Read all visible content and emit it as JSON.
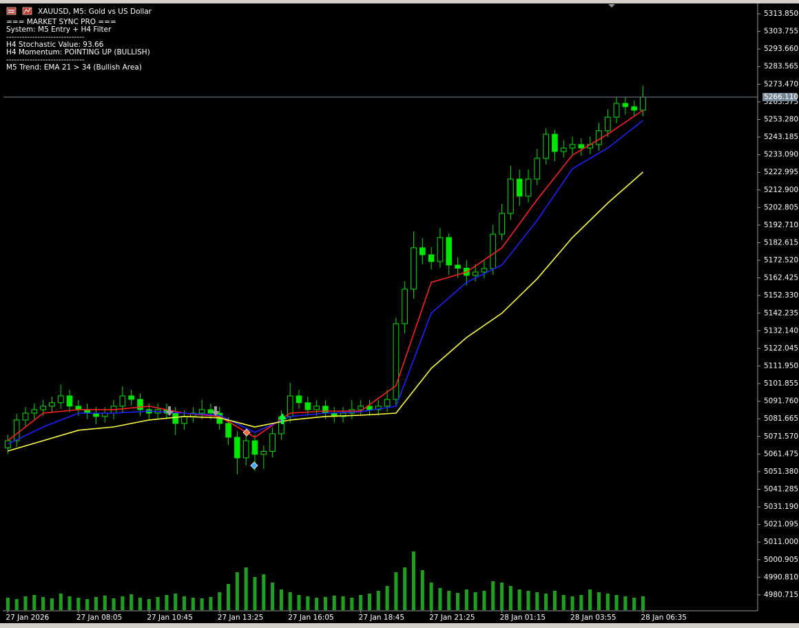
{
  "chart_data": {
    "type": "candlestick",
    "title": "XAUUSD, M5:  Gold vs US Dollar",
    "annotations": [
      "=== MARKET SYNC PRO ===",
      "System: M5 Entry + H4 Filter",
      "------------------------------",
      "H4 Stochastic Value: 93.66",
      "H4 Momentum: POINTING UP (BULLISH)",
      "------------------------------",
      "M5 Trend: EMA 21 > 34 (Bullish Area)"
    ],
    "color": "#00e600",
    "x": [
      0,
      1,
      2,
      3,
      4,
      5,
      6,
      7,
      8,
      9,
      10,
      11,
      12,
      13,
      14,
      15,
      16,
      17,
      18,
      19,
      20,
      21,
      22,
      23,
      24,
      25,
      26,
      27,
      28,
      29,
      30,
      31,
      32,
      33,
      34,
      35,
      36,
      37,
      38,
      39,
      40,
      41,
      42,
      43,
      44,
      45,
      46,
      47,
      48,
      49,
      50,
      51,
      52,
      53,
      54,
      55,
      56,
      57,
      58,
      59,
      60,
      61,
      62,
      63,
      64,
      65,
      66,
      67,
      68,
      69,
      70,
      71,
      72
    ],
    "open": [
      5065.0,
      5069.1,
      5081.0,
      5084.9,
      5086.9,
      5088.9,
      5090.9,
      5094.8,
      5088.9,
      5086.9,
      5084.9,
      5083.0,
      5084.9,
      5088.9,
      5094.8,
      5092.8,
      5086.9,
      5084.9,
      5086.9,
      5084.9,
      5079.0,
      5083.0,
      5084.9,
      5086.9,
      5084.9,
      5079.0,
      5071.1,
      5059.3,
      5069.1,
      5061.3,
      5063.0,
      5073.1,
      5083.0,
      5094.8,
      5090.9,
      5086.9,
      5088.9,
      5084.9,
      5083.0,
      5084.9,
      5086.9,
      5088.9,
      5086.9,
      5088.9,
      5092.8,
      5136.2,
      5156.0,
      5179.7,
      5175.7,
      5171.8,
      5185.6,
      5169.8,
      5168.0,
      5163.9,
      5165.8,
      5167.8,
      5187.5,
      5199.4,
      5219.1,
      5209.3,
      5219.1,
      5231.0,
      5244.8,
      5234.9,
      5236.9,
      5238.9,
      5236.9,
      5238.9,
      5246.8,
      5254.6,
      5262.5,
      5260.6,
      5258.6
    ],
    "high": [
      5072.6,
      5084.5,
      5088.4,
      5090.4,
      5092.4,
      5094.4,
      5101.3,
      5098.3,
      5092.4,
      5090.4,
      5088.4,
      5088.4,
      5092.4,
      5100.3,
      5098.3,
      5096.3,
      5090.4,
      5090.4,
      5090.4,
      5088.4,
      5086.5,
      5088.4,
      5092.4,
      5090.4,
      5088.4,
      5082.5,
      5074.6,
      5072.6,
      5072.6,
      5066.5,
      5076.6,
      5086.5,
      5102.3,
      5098.3,
      5094.4,
      5092.4,
      5092.4,
      5088.4,
      5088.4,
      5092.4,
      5092.4,
      5092.4,
      5092.4,
      5098.3,
      5139.7,
      5160.5,
      5189.2,
      5185.2,
      5180.2,
      5191.1,
      5188.1,
      5174.3,
      5172.5,
      5170.3,
      5172.3,
      5193.0,
      5204.9,
      5226.6,
      5224.6,
      5224.6,
      5236.5,
      5248.3,
      5247.3,
      5241.4,
      5243.4,
      5242.4,
      5243.4,
      5251.3,
      5259.1,
      5266.0,
      5266.0,
      5264.1,
      5272.6
    ],
    "low": [
      5061.5,
      5065.6,
      5077.5,
      5081.4,
      5083.4,
      5085.4,
      5087.4,
      5085.4,
      5083.4,
      5081.4,
      5078.5,
      5079.5,
      5081.4,
      5085.4,
      5089.3,
      5083.4,
      5081.4,
      5081.4,
      5081.4,
      5072.5,
      5075.5,
      5079.5,
      5081.4,
      5081.4,
      5075.5,
      5066.6,
      5049.8,
      5054.8,
      5051.8,
      5052.8,
      5059.5,
      5069.6,
      5079.5,
      5087.4,
      5083.4,
      5083.4,
      5081.4,
      5079.5,
      5079.5,
      5081.4,
      5083.4,
      5083.4,
      5083.4,
      5085.4,
      5089.3,
      5130.7,
      5150.5,
      5170.2,
      5167.3,
      5168.3,
      5164.3,
      5162.5,
      5158.4,
      5160.4,
      5162.3,
      5164.3,
      5184.0,
      5195.9,
      5203.8,
      5205.8,
      5215.6,
      5227.5,
      5229.4,
      5231.4,
      5233.4,
      5232.4,
      5233.4,
      5235.4,
      5243.3,
      5251.1,
      5256.1,
      5255.1,
      5255.1
    ],
    "close": [
      5069.1,
      5081.0,
      5084.9,
      5086.9,
      5088.9,
      5090.9,
      5094.8,
      5088.9,
      5086.9,
      5084.9,
      5083.0,
      5084.9,
      5088.9,
      5094.8,
      5092.8,
      5086.9,
      5084.9,
      5086.9,
      5084.9,
      5079.0,
      5083.0,
      5084.9,
      5086.9,
      5084.9,
      5079.0,
      5071.1,
      5059.3,
      5069.1,
      5061.3,
      5063.0,
      5073.1,
      5083.0,
      5094.8,
      5090.9,
      5086.9,
      5088.9,
      5084.9,
      5083.0,
      5084.9,
      5086.9,
      5088.9,
      5086.9,
      5088.9,
      5092.8,
      5136.2,
      5156.0,
      5179.7,
      5175.7,
      5171.8,
      5185.6,
      5169.8,
      5168.0,
      5163.9,
      5165.8,
      5167.8,
      5187.5,
      5199.4,
      5219.1,
      5209.3,
      5219.1,
      5231.0,
      5244.8,
      5234.9,
      5236.9,
      5238.9,
      5236.9,
      5238.9,
      5246.8,
      5254.6,
      5262.5,
      5260.6,
      5258.6,
      5266.1
    ],
    "volume": [
      18,
      16,
      20,
      22,
      19,
      17,
      24,
      20,
      18,
      16,
      19,
      21,
      17,
      20,
      23,
      18,
      16,
      19,
      22,
      24,
      20,
      18,
      17,
      19,
      26,
      38,
      55,
      62,
      48,
      52,
      40,
      30,
      26,
      22,
      20,
      18,
      19,
      21,
      20,
      18,
      22,
      24,
      28,
      35,
      55,
      62,
      85,
      58,
      40,
      32,
      28,
      25,
      30,
      26,
      28,
      42,
      40,
      35,
      30,
      28,
      26,
      24,
      28,
      22,
      20,
      22,
      30,
      26,
      24,
      22,
      20,
      18,
      20
    ],
    "series": [
      {
        "color": "#ff2020",
        "x": [
          0,
          4,
          8,
          12,
          16,
          20,
          24,
          28,
          32,
          36,
          40,
          44,
          48,
          52,
          56,
          60,
          64,
          68,
          72
        ],
        "values": [
          5069.1,
          5084.9,
          5086.9,
          5086.9,
          5088.9,
          5084.9,
          5083.0,
          5071.1,
          5084.9,
          5086.1,
          5086.1,
          5100.7,
          5159.9,
          5165.8,
          5179.7,
          5207.3,
          5232.9,
          5244.8,
          5258.6
        ]
      },
      {
        "color": "#2020ff",
        "x": [
          0,
          4,
          8,
          12,
          16,
          20,
          24,
          28,
          32,
          36,
          40,
          44,
          48,
          52,
          56,
          60,
          64,
          68,
          72
        ],
        "values": [
          5067.2,
          5077.0,
          5084.9,
          5084.9,
          5086.1,
          5084.9,
          5083.7,
          5073.9,
          5083.0,
          5084.9,
          5085.7,
          5088.9,
          5142.2,
          5159.9,
          5169.8,
          5195.4,
          5225.0,
          5236.9,
          5252.7
        ]
      },
      {
        "color": "#ffff40",
        "x": [
          0,
          4,
          8,
          12,
          16,
          20,
          24,
          28,
          32,
          36,
          40,
          44,
          48,
          52,
          56,
          60,
          64,
          68,
          72
        ],
        "values": [
          5063.2,
          5069.1,
          5075.1,
          5077.0,
          5081.0,
          5083.0,
          5082.2,
          5077.0,
          5081.0,
          5083.0,
          5083.7,
          5084.9,
          5110.6,
          5128.3,
          5142.2,
          5161.9,
          5185.6,
          5205.3,
          5223.1
        ]
      }
    ],
    "bid_price": {
      "value": 5266.11,
      "label": "5266.110"
    },
    "xlim": [
      -0.5,
      85
    ],
    "ylim": [
      4972.0,
      5318.6
    ],
    "xticks": [
      {
        "value": 0,
        "label": "27 Jan 2026"
      },
      {
        "value": 8,
        "label": "27 Jan 08:05"
      },
      {
        "value": 16,
        "label": "27 Jan 10:45"
      },
      {
        "value": 24,
        "label": "27 Jan 13:25"
      },
      {
        "value": 32,
        "label": "27 Jan 16:05"
      },
      {
        "value": 40,
        "label": "27 Jan 18:45"
      },
      {
        "value": 48,
        "label": "27 Jan 21:25"
      },
      {
        "value": 56,
        "label": "28 Jan 01:15"
      },
      {
        "value": 64,
        "label": "28 Jan 03:55"
      },
      {
        "value": 72,
        "label": "28 Jan 06:35"
      }
    ],
    "yticks": [
      {
        "value": 5313.85,
        "label": "5313.850"
      },
      {
        "value": 5303.755,
        "label": "5303.755"
      },
      {
        "value": 5293.66,
        "label": "5293.660"
      },
      {
        "value": 5283.565,
        "label": "5283.565"
      },
      {
        "value": 5273.47,
        "label": "5273.470"
      },
      {
        "value": 5263.375,
        "label": "5263.375"
      },
      {
        "value": 5253.28,
        "label": "5253.280"
      },
      {
        "value": 5243.185,
        "label": "5243.185"
      },
      {
        "value": 5233.09,
        "label": "5233.090"
      },
      {
        "value": 5222.995,
        "label": "5222.995"
      },
      {
        "value": 5212.9,
        "label": "5212.900"
      },
      {
        "value": 5202.805,
        "label": "5202.805"
      },
      {
        "value": 5192.71,
        "label": "5192.710"
      },
      {
        "value": 5182.615,
        "label": "5182.615"
      },
      {
        "value": 5172.52,
        "label": "5172.520"
      },
      {
        "value": 5162.425,
        "label": "5162.425"
      },
      {
        "value": 5152.33,
        "label": "5152.330"
      },
      {
        "value": 5142.235,
        "label": "5142.235"
      },
      {
        "value": 5132.14,
        "label": "5132.140"
      },
      {
        "value": 5122.045,
        "label": "5122.045"
      },
      {
        "value": 5111.95,
        "label": "5111.950"
      },
      {
        "value": 5101.855,
        "label": "5101.855"
      },
      {
        "value": 5091.76,
        "label": "5091.760"
      },
      {
        "value": 5081.665,
        "label": "5081.665"
      },
      {
        "value": 5071.57,
        "label": "5071.570"
      },
      {
        "value": 5061.475,
        "label": "5061.475"
      },
      {
        "value": 5051.38,
        "label": "5051.380"
      },
      {
        "value": 5041.285,
        "label": "5041.285"
      },
      {
        "value": 5031.19,
        "label": "5031.190"
      },
      {
        "value": 5021.095,
        "label": "5021.095"
      },
      {
        "value": 5011.0,
        "label": "5011.000"
      },
      {
        "value": 5000.905,
        "label": "5000.905"
      },
      {
        "value": 4990.81,
        "label": "4990.810"
      },
      {
        "value": 4980.715,
        "label": "4980.715"
      }
    ],
    "grid": false
  }
}
